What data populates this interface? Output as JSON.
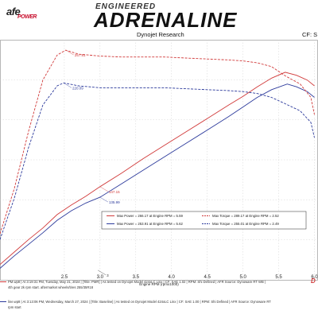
{
  "header": {
    "brand": "afe",
    "brand_sub": "POWER",
    "engineered": "ENGINEERED",
    "title": "ADRENALINE",
    "subtitle": "Dynojet Research",
    "cf_label": "CF: S"
  },
  "chart_data": {
    "type": "line",
    "xlabel": "Engine RPM (rpmx1000)",
    "x_ticks": [
      "2.5",
      "3.0",
      "3.5",
      "4.0",
      "4.5",
      "5.0",
      "5.5",
      "6.0"
    ],
    "xlim": [
      1.6,
      6.05
    ],
    "ylim": [
      50,
      300
    ],
    "colors": {
      "red": "#d13a3a",
      "blue": "#2d3b9c",
      "grid": "#c8c8c8"
    },
    "series": [
      {
        "name": "Max Power = 266.17 at Engine RPM = 5.59",
        "color": "#d13a3a",
        "style": "solid",
        "x": [
          1.6,
          1.8,
          2.0,
          2.2,
          2.4,
          2.6,
          2.8,
          3.0,
          3.3,
          3.6,
          3.9,
          4.2,
          4.5,
          4.8,
          5.0,
          5.2,
          5.4,
          5.59,
          5.75,
          5.9,
          6.0
        ],
        "y": [
          66,
          79,
          92,
          104,
          118,
          128,
          137,
          147,
          161,
          176,
          190,
          204,
          218,
          232,
          241,
          251,
          260,
          266.17,
          263,
          258,
          252
        ]
      },
      {
        "name": "Max Power = 253.91 at Engine RPM = 5.62",
        "color": "#2d3b9c",
        "style": "solid",
        "x": [
          1.6,
          1.8,
          2.0,
          2.2,
          2.4,
          2.6,
          2.8,
          3.0,
          3.3,
          3.6,
          3.9,
          4.2,
          4.5,
          4.8,
          5.0,
          5.2,
          5.4,
          5.62,
          5.75,
          5.9,
          6.0
        ],
        "y": [
          62,
          75,
          87,
          99,
          112,
          122,
          130,
          136,
          150,
          164,
          178,
          192,
          206,
          220,
          230,
          240,
          248,
          253.91,
          251,
          246,
          240
        ]
      },
      {
        "name": "Max Torque = 289.17 at Engine RPM = 2.52",
        "color": "#d13a3a",
        "style": "dashed",
        "x": [
          1.6,
          1.8,
          2.0,
          2.2,
          2.4,
          2.52,
          2.7,
          3.0,
          3.3,
          3.6,
          3.9,
          4.2,
          4.5,
          4.8,
          5.0,
          5.2,
          5.4,
          5.6,
          5.8,
          5.95,
          6.0
        ],
        "y": [
          98,
          145,
          205,
          258,
          284,
          289.17,
          285,
          283,
          282,
          282,
          282,
          281,
          280,
          279,
          278,
          276,
          272,
          262,
          254,
          240,
          222
        ]
      },
      {
        "name": "Max Torque = 255.01 at Engine RPM = 2.49",
        "color": "#2d3b9c",
        "style": "dashed",
        "x": [
          1.6,
          1.8,
          2.0,
          2.2,
          2.4,
          2.49,
          2.7,
          3.0,
          3.3,
          3.6,
          3.9,
          4.2,
          4.5,
          4.8,
          5.0,
          5.2,
          5.4,
          5.6,
          5.8,
          5.95,
          6.0
        ],
        "y": [
          92,
          135,
          188,
          232,
          252,
          255.01,
          252,
          250,
          250,
          250,
          250,
          249,
          248,
          247,
          246,
          244,
          240,
          233,
          226,
          214,
          198
        ]
      }
    ],
    "annotations": [
      {
        "text": "257.81",
        "x": 2.52,
        "y": 289.17,
        "color": "#d13a3a"
      },
      {
        "text": "220.09",
        "x": 2.49,
        "y": 255.01,
        "color": "#2d3b9c"
      },
      {
        "text": "147.15",
        "x": 3.0,
        "y": 147,
        "color": "#d13a3a"
      },
      {
        "text": "135.99",
        "x": 3.0,
        "y": 136,
        "color": "#2d3b9c"
      },
      {
        "text": "3",
        "x": 2.97,
        "y": 60,
        "color": "#333333"
      }
    ],
    "legend_position": "center-bottom",
    "right_marker": "D"
  },
  "footer": [
    {
      "text": "PM.wp8 | At 3:19:31 PM, Tuesday, May 21, 2024 | [Title: PMR] | As tested on Dynojet Model 424xLC Linx | CF: SAE 1.02 | RPM: Shi Defined | AFR Source: Dynoware RT WB |",
      "color": "#d13a3a"
    },
    {
      "text": "4th gear 2k rpm start. aftermarket wheels/tires 255/35R18",
      "color": "#d13a3a"
    },
    {
      "text": "line.wp8 | At 3:13:06 PM, Wednesday, March 27, 2024 | [Title: Baseline] | As tested on Dynojet Model 424xLC Linx | CF: SAE 1.00 | RPM: Shi Defined | AFR Source: Dynoware RT",
      "color": "#2d3b9c"
    },
    {
      "text": "rpm start",
      "color": "#2d3b9c"
    }
  ]
}
